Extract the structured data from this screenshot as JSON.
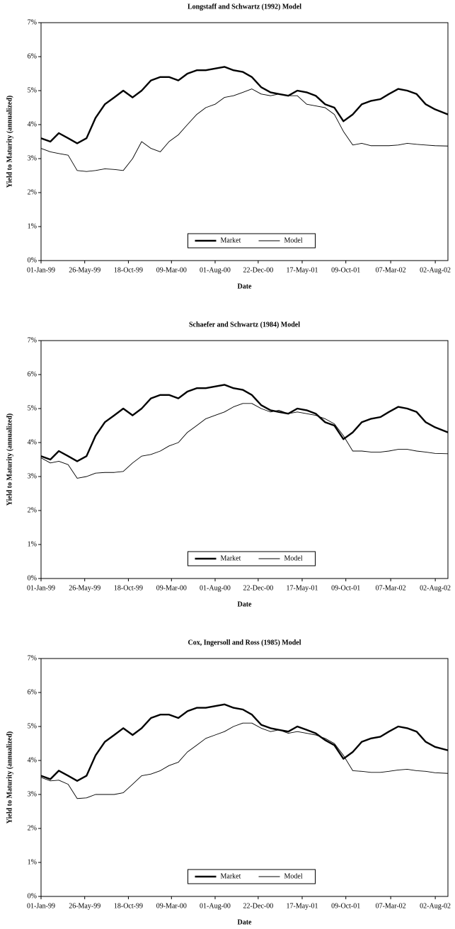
{
  "chart_data": [
    {
      "type": "line",
      "title": "Longstaff and Schwartz (1992) Model",
      "x_label": "Date",
      "y_label": "Yield to Maturity (annualized)",
      "x": [
        "01-Jan-99",
        "01-Feb-99",
        "01-Mar-99",
        "01-Apr-99",
        "01-May-99",
        "01-Jun-99",
        "01-Jul-99",
        "01-Aug-99",
        "01-Sep-99",
        "01-Oct-99",
        "01-Nov-99",
        "01-Dec-99",
        "01-Jan-00",
        "01-Feb-00",
        "01-Mar-00",
        "01-Apr-00",
        "01-May-00",
        "01-Jun-00",
        "01-Jul-00",
        "01-Aug-00",
        "01-Sep-00",
        "01-Oct-00",
        "01-Nov-00",
        "01-Dec-00",
        "01-Jan-01",
        "01-Feb-01",
        "01-Mar-01",
        "01-Apr-01",
        "01-May-01",
        "01-Jun-01",
        "01-Jul-01",
        "01-Aug-01",
        "01-Sep-01",
        "01-Oct-01",
        "01-Nov-01",
        "01-Dec-01",
        "01-Jan-02",
        "01-Feb-02",
        "01-Mar-02",
        "01-Apr-02",
        "01-May-02",
        "01-Jun-02",
        "01-Jul-02",
        "01-Aug-02",
        "13-Sep-02"
      ],
      "xlim": [
        "01-Jan-99",
        "13-Sep-02"
      ],
      "xticks": [
        "01-Jan-99",
        "26-May-99",
        "18-Oct-99",
        "09-Mar-00",
        "01-Aug-00",
        "22-Dec-00",
        "17-May-01",
        "09-Oct-01",
        "07-Mar-02",
        "02-Aug-02"
      ],
      "ylim": [
        0,
        7
      ],
      "yticks": [
        {
          "value": 0,
          "label": "0%"
        },
        {
          "value": 1,
          "label": "1%"
        },
        {
          "value": 2,
          "label": "2%"
        },
        {
          "value": 3,
          "label": "3%"
        },
        {
          "value": 4,
          "label": "4%"
        },
        {
          "value": 5,
          "label": "5%"
        },
        {
          "value": 6,
          "label": "6%"
        },
        {
          "value": 7,
          "label": "7%"
        }
      ],
      "legend": "bottom",
      "series": [
        {
          "name": "Market",
          "color": "#000000",
          "values": [
            3.6,
            3.5,
            3.75,
            3.6,
            3.45,
            3.6,
            4.2,
            4.6,
            4.8,
            5.0,
            4.8,
            5.0,
            5.3,
            5.4,
            5.4,
            5.3,
            5.5,
            5.6,
            5.6,
            5.65,
            5.7,
            5.6,
            5.55,
            5.4,
            5.1,
            4.95,
            4.9,
            4.85,
            5.0,
            4.95,
            4.85,
            4.6,
            4.5,
            4.1,
            4.3,
            4.6,
            4.7,
            4.75,
            4.9,
            5.05,
            5.0,
            4.9,
            4.6,
            4.45,
            4.3
          ]
        },
        {
          "name": "Model",
          "color": "#000000",
          "values": [
            3.3,
            3.2,
            3.15,
            3.1,
            2.65,
            2.62,
            2.65,
            2.7,
            2.68,
            2.65,
            3.0,
            3.5,
            3.3,
            3.2,
            3.5,
            3.7,
            4.0,
            4.3,
            4.5,
            4.6,
            4.8,
            4.85,
            4.95,
            5.05,
            4.9,
            4.85,
            4.9,
            4.85,
            4.85,
            4.6,
            4.55,
            4.5,
            4.3,
            3.8,
            3.4,
            3.45,
            3.38,
            3.38,
            3.38,
            3.4,
            3.45,
            3.42,
            3.4,
            3.38,
            3.37
          ]
        }
      ]
    },
    {
      "type": "line",
      "title": "Schaefer and Schwartz (1984) Model",
      "x_label": "Date",
      "y_label": "Yield to Maturity (annualized)",
      "x": [
        "01-Jan-99",
        "01-Feb-99",
        "01-Mar-99",
        "01-Apr-99",
        "01-May-99",
        "01-Jun-99",
        "01-Jul-99",
        "01-Aug-99",
        "01-Sep-99",
        "01-Oct-99",
        "01-Nov-99",
        "01-Dec-99",
        "01-Jan-00",
        "01-Feb-00",
        "01-Mar-00",
        "01-Apr-00",
        "01-May-00",
        "01-Jun-00",
        "01-Jul-00",
        "01-Aug-00",
        "01-Sep-00",
        "01-Oct-00",
        "01-Nov-00",
        "01-Dec-00",
        "01-Jan-01",
        "01-Feb-01",
        "01-Mar-01",
        "01-Apr-01",
        "01-May-01",
        "01-Jun-01",
        "01-Jul-01",
        "01-Aug-01",
        "01-Sep-01",
        "01-Oct-01",
        "01-Nov-01",
        "01-Dec-01",
        "01-Jan-02",
        "01-Feb-02",
        "01-Mar-02",
        "01-Apr-02",
        "01-May-02",
        "01-Jun-02",
        "01-Jul-02",
        "01-Aug-02",
        "13-Sep-02"
      ],
      "xlim": [
        "01-Jan-99",
        "13-Sep-02"
      ],
      "xticks": [
        "01-Jan-99",
        "26-May-99",
        "18-Oct-99",
        "09-Mar-00",
        "01-Aug-00",
        "22-Dec-00",
        "17-May-01",
        "09-Oct-01",
        "07-Mar-02",
        "02-Aug-02"
      ],
      "ylim": [
        0,
        7
      ],
      "yticks": [
        {
          "value": 0,
          "label": "0%"
        },
        {
          "value": 1,
          "label": "1%"
        },
        {
          "value": 2,
          "label": "2%"
        },
        {
          "value": 3,
          "label": "3%"
        },
        {
          "value": 4,
          "label": "4%"
        },
        {
          "value": 5,
          "label": "5%"
        },
        {
          "value": 6,
          "label": "6%"
        },
        {
          "value": 7,
          "label": "7%"
        }
      ],
      "legend": "bottom",
      "series": [
        {
          "name": "Market",
          "color": "#000000",
          "values": [
            3.6,
            3.5,
            3.75,
            3.6,
            3.45,
            3.6,
            4.2,
            4.6,
            4.8,
            5.0,
            4.8,
            5.0,
            5.3,
            5.4,
            5.4,
            5.3,
            5.5,
            5.6,
            5.6,
            5.65,
            5.7,
            5.6,
            5.55,
            5.4,
            5.1,
            4.95,
            4.9,
            4.85,
            5.0,
            4.95,
            4.85,
            4.6,
            4.5,
            4.1,
            4.3,
            4.6,
            4.7,
            4.75,
            4.9,
            5.05,
            5.0,
            4.9,
            4.6,
            4.45,
            4.3
          ]
        },
        {
          "name": "Model",
          "color": "#000000",
          "values": [
            3.55,
            3.4,
            3.45,
            3.35,
            2.95,
            3.0,
            3.1,
            3.12,
            3.12,
            3.15,
            3.4,
            3.6,
            3.65,
            3.75,
            3.9,
            4.0,
            4.3,
            4.5,
            4.7,
            4.8,
            4.9,
            5.05,
            5.15,
            5.15,
            5.0,
            4.9,
            4.95,
            4.85,
            4.9,
            4.85,
            4.8,
            4.7,
            4.55,
            4.2,
            3.75,
            3.75,
            3.72,
            3.72,
            3.75,
            3.8,
            3.8,
            3.75,
            3.72,
            3.68,
            3.67
          ]
        }
      ]
    },
    {
      "type": "line",
      "title": "Cox, Ingersoll and Ross (1985) Model",
      "x_label": "Date",
      "y_label": "Yield to Maturity (annualized)",
      "x": [
        "01-Jan-99",
        "01-Feb-99",
        "01-Mar-99",
        "01-Apr-99",
        "01-May-99",
        "01-Jun-99",
        "01-Jul-99",
        "01-Aug-99",
        "01-Sep-99",
        "01-Oct-99",
        "01-Nov-99",
        "01-Dec-99",
        "01-Jan-00",
        "01-Feb-00",
        "01-Mar-00",
        "01-Apr-00",
        "01-May-00",
        "01-Jun-00",
        "01-Jul-00",
        "01-Aug-00",
        "01-Sep-00",
        "01-Oct-00",
        "01-Nov-00",
        "01-Dec-00",
        "01-Jan-01",
        "01-Feb-01",
        "01-Mar-01",
        "01-Apr-01",
        "01-May-01",
        "01-Jun-01",
        "01-Jul-01",
        "01-Aug-01",
        "01-Sep-01",
        "01-Oct-01",
        "01-Nov-01",
        "01-Dec-01",
        "01-Jan-02",
        "01-Feb-02",
        "01-Mar-02",
        "01-Apr-02",
        "01-May-02",
        "01-Jun-02",
        "01-Jul-02",
        "01-Aug-02",
        "13-Sep-02"
      ],
      "xlim": [
        "01-Jan-99",
        "13-Sep-02"
      ],
      "xticks": [
        "01-Jan-99",
        "26-May-99",
        "18-Oct-99",
        "09-Mar-00",
        "01-Aug-00",
        "22-Dec-00",
        "17-May-01",
        "09-Oct-01",
        "07-Mar-02",
        "02-Aug-02"
      ],
      "ylim": [
        0,
        7
      ],
      "yticks": [
        {
          "value": 0,
          "label": "0%"
        },
        {
          "value": 1,
          "label": "1%"
        },
        {
          "value": 2,
          "label": "2%"
        },
        {
          "value": 3,
          "label": "3%"
        },
        {
          "value": 4,
          "label": "4%"
        },
        {
          "value": 5,
          "label": "5%"
        },
        {
          "value": 6,
          "label": "6%"
        },
        {
          "value": 7,
          "label": "7%"
        }
      ],
      "legend": "bottom",
      "series": [
        {
          "name": "Market",
          "color": "#000000",
          "values": [
            3.55,
            3.45,
            3.7,
            3.55,
            3.4,
            3.55,
            4.15,
            4.55,
            4.75,
            4.95,
            4.75,
            4.95,
            5.25,
            5.35,
            5.35,
            5.25,
            5.45,
            5.55,
            5.55,
            5.6,
            5.65,
            5.55,
            5.5,
            5.35,
            5.05,
            4.95,
            4.9,
            4.85,
            5.0,
            4.9,
            4.8,
            4.6,
            4.45,
            4.05,
            4.25,
            4.55,
            4.65,
            4.7,
            4.85,
            5.0,
            4.95,
            4.85,
            4.55,
            4.4,
            4.3
          ]
        },
        {
          "name": "Model",
          "color": "#000000",
          "values": [
            3.5,
            3.4,
            3.42,
            3.3,
            2.88,
            2.9,
            3.0,
            3.0,
            3.0,
            3.05,
            3.3,
            3.55,
            3.6,
            3.7,
            3.85,
            3.95,
            4.25,
            4.45,
            4.65,
            4.75,
            4.85,
            5.0,
            5.1,
            5.1,
            4.95,
            4.85,
            4.9,
            4.8,
            4.85,
            4.8,
            4.75,
            4.65,
            4.5,
            4.15,
            3.7,
            3.68,
            3.65,
            3.65,
            3.68,
            3.72,
            3.74,
            3.7,
            3.68,
            3.64,
            3.62
          ]
        }
      ]
    }
  ]
}
